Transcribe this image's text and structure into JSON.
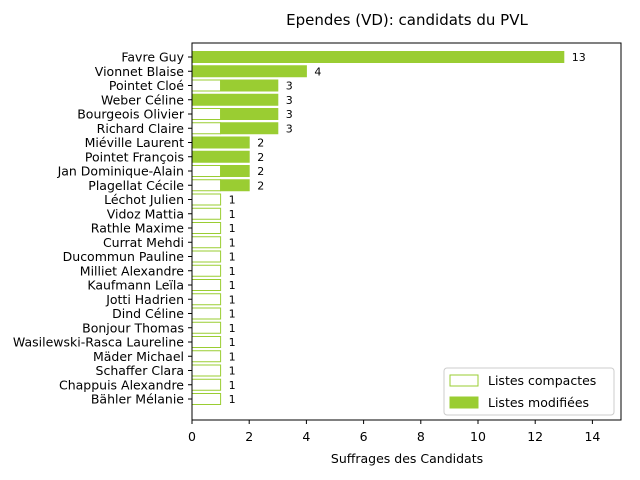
{
  "chart_data": {
    "type": "bar",
    "orientation": "horizontal",
    "stacked": true,
    "title": "Ependes (VD): candidats du PVL",
    "xlabel": "Suffrages des Candidats",
    "ylabel": "",
    "xlim": [
      0,
      15
    ],
    "xticks": [
      "0",
      "2",
      "4",
      "6",
      "8",
      "10",
      "12",
      "14"
    ],
    "grid": false,
    "legend_position": "lower-right",
    "colors": {
      "modified": "#9acd32",
      "compact_edge": "#9acd32",
      "compact_fill": "#ffffff"
    },
    "categories": [
      "Favre Guy",
      "Vionnet Blaise",
      "Pointet Cloé",
      "Weber Céline",
      "Bourgeois Olivier",
      "Richard Claire",
      "Miéville Laurent",
      "Pointet François",
      "Jan Dominique-Alain",
      "Plagellat Cécile",
      "Léchot Julien",
      "Vidoz Mattia",
      "Rathle Maxime",
      "Currat Mehdi",
      "Ducommun Pauline",
      "Milliet Alexandre",
      "Kaufmann Leïla",
      "Jotti Hadrien",
      "Dind Céline",
      "Bonjour Thomas",
      "Wasilewski-Rasca Laureline",
      "Mäder Michael",
      "Schaffer Clara",
      "Chappuis Alexandre",
      "Bähler Mélanie"
    ],
    "series": [
      {
        "name": "Listes compactes",
        "values": [
          0,
          0,
          1,
          0,
          1,
          1,
          0,
          0,
          1,
          1,
          1,
          1,
          1,
          1,
          1,
          1,
          1,
          1,
          1,
          1,
          1,
          1,
          1,
          1,
          1
        ]
      },
      {
        "name": "Listes modifiées",
        "values": [
          13,
          4,
          2,
          3,
          2,
          2,
          2,
          2,
          1,
          1,
          0,
          0,
          0,
          0,
          0,
          0,
          0,
          0,
          0,
          0,
          0,
          0,
          0,
          0,
          0
        ]
      }
    ],
    "totals": [
      "13",
      "4",
      "3",
      "3",
      "3",
      "3",
      "2",
      "2",
      "2",
      "2",
      "1",
      "1",
      "1",
      "1",
      "1",
      "1",
      "1",
      "1",
      "1",
      "1",
      "1",
      "1",
      "1",
      "1",
      "1"
    ]
  }
}
